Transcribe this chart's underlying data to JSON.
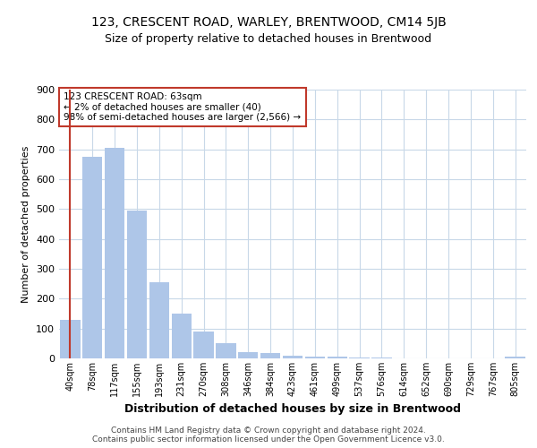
{
  "title": "123, CRESCENT ROAD, WARLEY, BRENTWOOD, CM14 5JB",
  "subtitle": "Size of property relative to detached houses in Brentwood",
  "xlabel": "Distribution of detached houses by size in Brentwood",
  "ylabel": "Number of detached properties",
  "categories": [
    "40sqm",
    "78sqm",
    "117sqm",
    "155sqm",
    "193sqm",
    "231sqm",
    "270sqm",
    "308sqm",
    "346sqm",
    "384sqm",
    "423sqm",
    "461sqm",
    "499sqm",
    "537sqm",
    "576sqm",
    "614sqm",
    "652sqm",
    "690sqm",
    "729sqm",
    "767sqm",
    "805sqm"
  ],
  "values": [
    130,
    675,
    705,
    495,
    255,
    150,
    90,
    52,
    22,
    18,
    10,
    7,
    5,
    3,
    2,
    1,
    1,
    0,
    0,
    0,
    7
  ],
  "bar_color": "#aec6e8",
  "highlight_color": "#c0392b",
  "highlight_index": 0,
  "annotation_text": "123 CRESCENT ROAD: 63sqm\n← 2% of detached houses are smaller (40)\n98% of semi-detached houses are larger (2,566) →",
  "annotation_box_color": "#c0392b",
  "ylim": [
    0,
    900
  ],
  "yticks": [
    0,
    100,
    200,
    300,
    400,
    500,
    600,
    700,
    800,
    900
  ],
  "footer": "Contains HM Land Registry data © Crown copyright and database right 2024.\nContains public sector information licensed under the Open Government Licence v3.0.",
  "bg_color": "#ffffff",
  "grid_color": "#c8d8e8",
  "title_fontsize": 10,
  "subtitle_fontsize": 9
}
